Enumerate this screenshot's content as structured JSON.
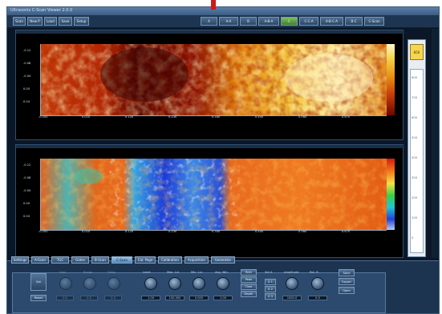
{
  "window": {
    "title": "Ultrasonix C-Scan Viewer 2.0.0",
    "marker_color": "#d01818"
  },
  "toolbar": {
    "left_buttons": [
      "Scan",
      "New P",
      "Load",
      "Save",
      "Setup"
    ],
    "right_buttons": [
      "A",
      "A-A",
      "B",
      "A-B-A",
      "C",
      "C-C-A",
      "A-B-C-A",
      "B-C",
      "C-Scan"
    ],
    "active_right_index": 4
  },
  "top_panel": {
    "x_ticks": [
      "-0.100",
      "0.010",
      "0.120",
      "0.230",
      "0.340",
      "0.450",
      "0.560",
      "0.670"
    ],
    "y_ticks": [
      "-0.12",
      "-0.08",
      "-0.04",
      "0.00",
      "0.04"
    ]
  },
  "bottom_panel": {
    "x_ticks": [
      "-0.100",
      "0.010",
      "0.120",
      "0.230",
      "0.340",
      "0.450",
      "0.560",
      "0.670"
    ],
    "y_ticks": [
      "-0.12",
      "-0.08",
      "-0.04",
      "0.00",
      "0.04"
    ]
  },
  "scale": {
    "header": "850",
    "ticks": [
      "800",
      "700",
      "600",
      "500",
      "400",
      "300",
      "200",
      "100",
      "0"
    ]
  },
  "control_tabs": {
    "labels": [
      "Settings",
      "A-Scan",
      "TGC",
      "Gates",
      "B-Scan",
      "C-Scan",
      "Cal. Page",
      "Calibration",
      "Acquisition",
      "Generator"
    ],
    "active_index": 5
  },
  "controls": {
    "left_buttons": [
      "Set",
      "Reset"
    ],
    "dim_knobs": [
      {
        "label": "Gain",
        "value": "0.0"
      },
      {
        "label": "Range",
        "value": "0.0"
      },
      {
        "label": "Delay",
        "value": "0.0"
      }
    ],
    "knobs": [
      {
        "label": "Level",
        "value": "1.00"
      },
      {
        "label": "Max. Lvl.",
        "value": "100.000"
      },
      {
        "label": "Min. Lvl.",
        "value": "0.000"
      },
      {
        "label": "Avg. Win.",
        "value": "1.00"
      }
    ],
    "mode_buttons": [
      "Rect",
      "Peak",
      "Time",
      "Depth"
    ],
    "set_label": "Set A",
    "small_buttons": [
      "X 1",
      "X 2",
      "X 3"
    ],
    "extra_knobs": [
      {
        "label": "Amplitude",
        "value": "1000.0"
      },
      {
        "label": "Rot. R.",
        "value": "0.0"
      }
    ],
    "right_buttons": [
      "Save",
      "Export",
      "Open"
    ]
  }
}
